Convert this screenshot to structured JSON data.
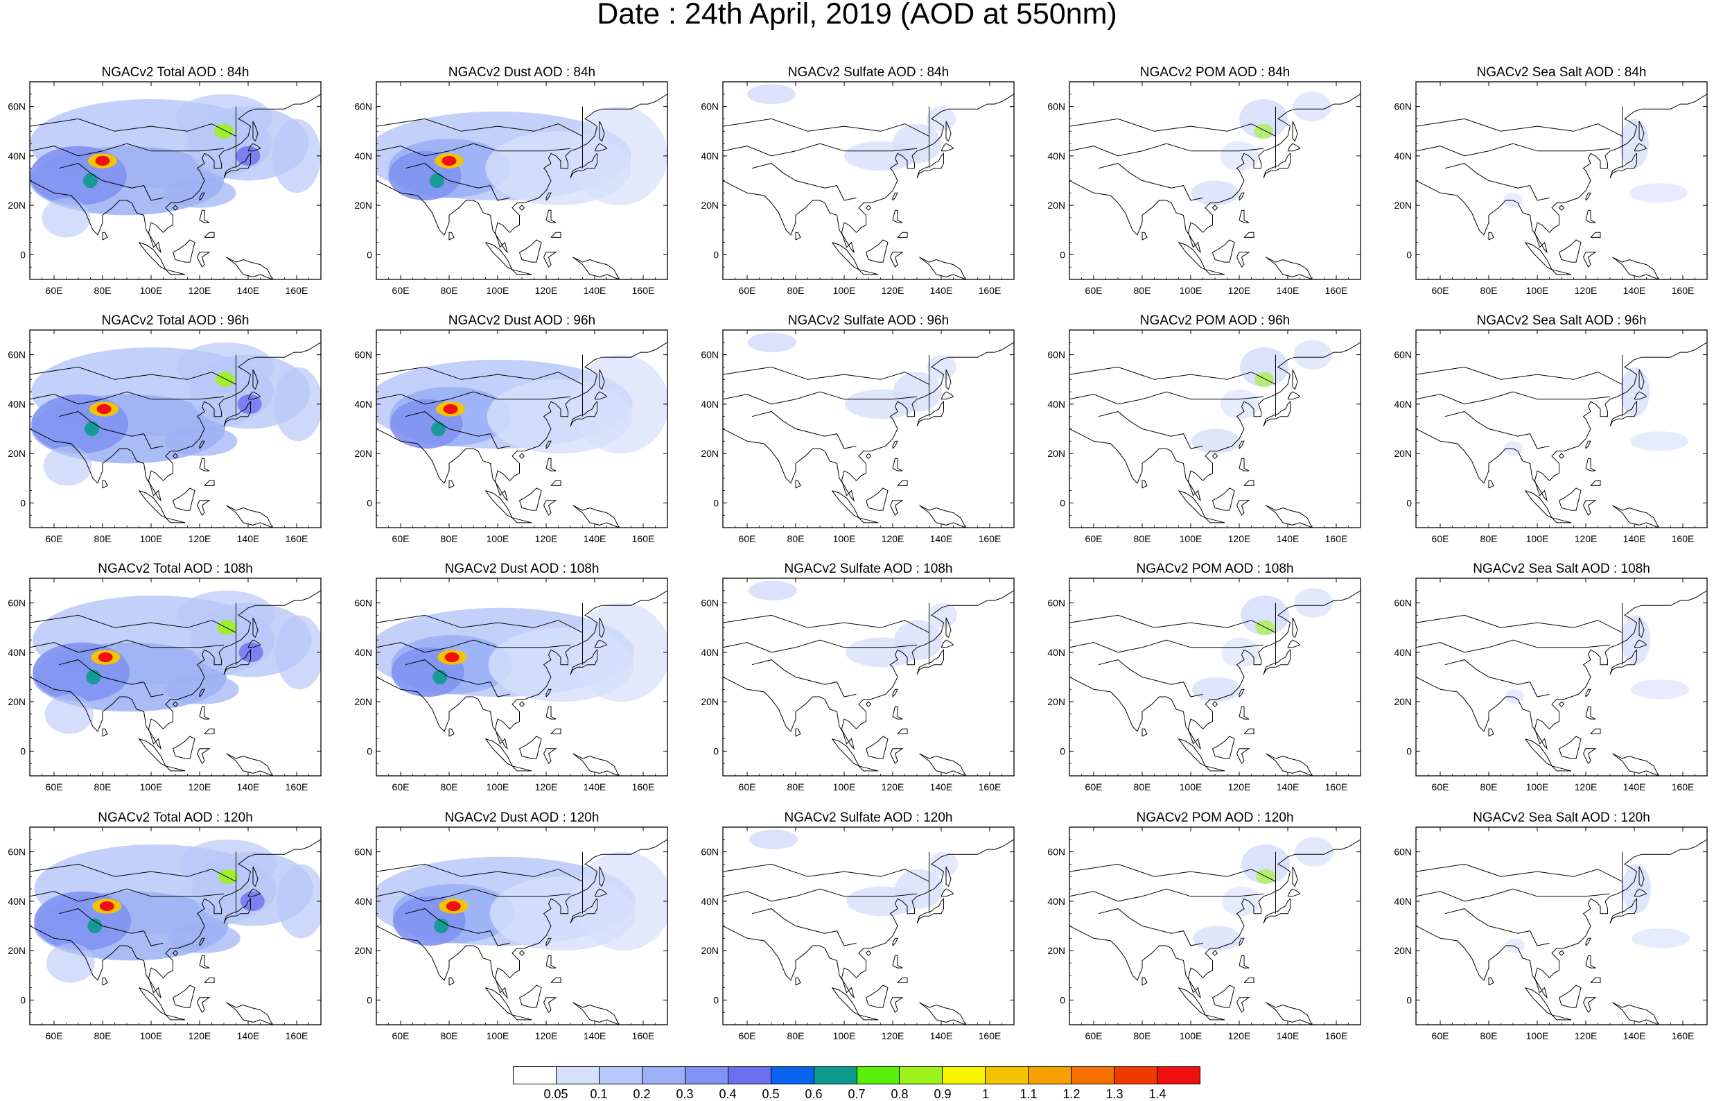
{
  "title": "Date : 24th April, 2019 (AOD at 550nm)",
  "lat_ticks": [
    "60N",
    "40N",
    "20N",
    "0"
  ],
  "lon_ticks": [
    "60E",
    "80E",
    "100E",
    "120E",
    "140E",
    "160E"
  ],
  "panels": [
    [
      "NGACv2 Total AOD : 84h",
      "NGACv2 Dust AOD : 84h",
      "NGACv2 Sulfate AOD : 84h",
      "NGACv2 POM AOD : 84h",
      "NGACv2 Sea Salt AOD : 84h"
    ],
    [
      "NGACv2 Total AOD : 96h",
      "NGACv2 Dust AOD : 96h",
      "NGACv2 Sulfate AOD : 96h",
      "NGACv2 POM AOD : 96h",
      "NGACv2 Sea Salt AOD : 96h"
    ],
    [
      "NGACv2 Total AOD : 108h",
      "NGACv2 Dust AOD : 108h",
      "NGACv2 Sulfate AOD : 108h",
      "NGACv2 POM AOD : 108h",
      "NGACv2 Sea Salt AOD : 108h"
    ],
    [
      "NGACv2 Total AOD : 120h",
      "NGACv2 Dust AOD : 120h",
      "NGACv2 Sulfate AOD : 120h",
      "NGACv2 POM AOD : 120h",
      "NGACv2 Sea Salt  AOD : 120h"
    ]
  ],
  "colorbar": {
    "colors": [
      "#ffffff",
      "#d6e0fb",
      "#b8c8f8",
      "#9bb0f5",
      "#8092f2",
      "#6a6ff0",
      "#0a62f0",
      "#0c9a8e",
      "#13ac13",
      "#5af00a",
      "#9cf21a",
      "#c8f542",
      "#f5f500",
      "#f5c400",
      "#f5a000",
      "#f57000",
      "#f03a00",
      "#f01010"
    ],
    "labels": [
      "0.05",
      "0.1",
      "0.2",
      "0.3",
      "0.4",
      "0.5",
      "0.6",
      "0.7",
      "0.8",
      "0.9",
      "1",
      "1.1",
      "1.2",
      "1.3",
      "1.4"
    ]
  },
  "map_extent": {
    "lon": [
      50,
      170
    ],
    "lat": [
      -10,
      70
    ]
  },
  "coastline_icon": "asia-coastline-outline"
}
